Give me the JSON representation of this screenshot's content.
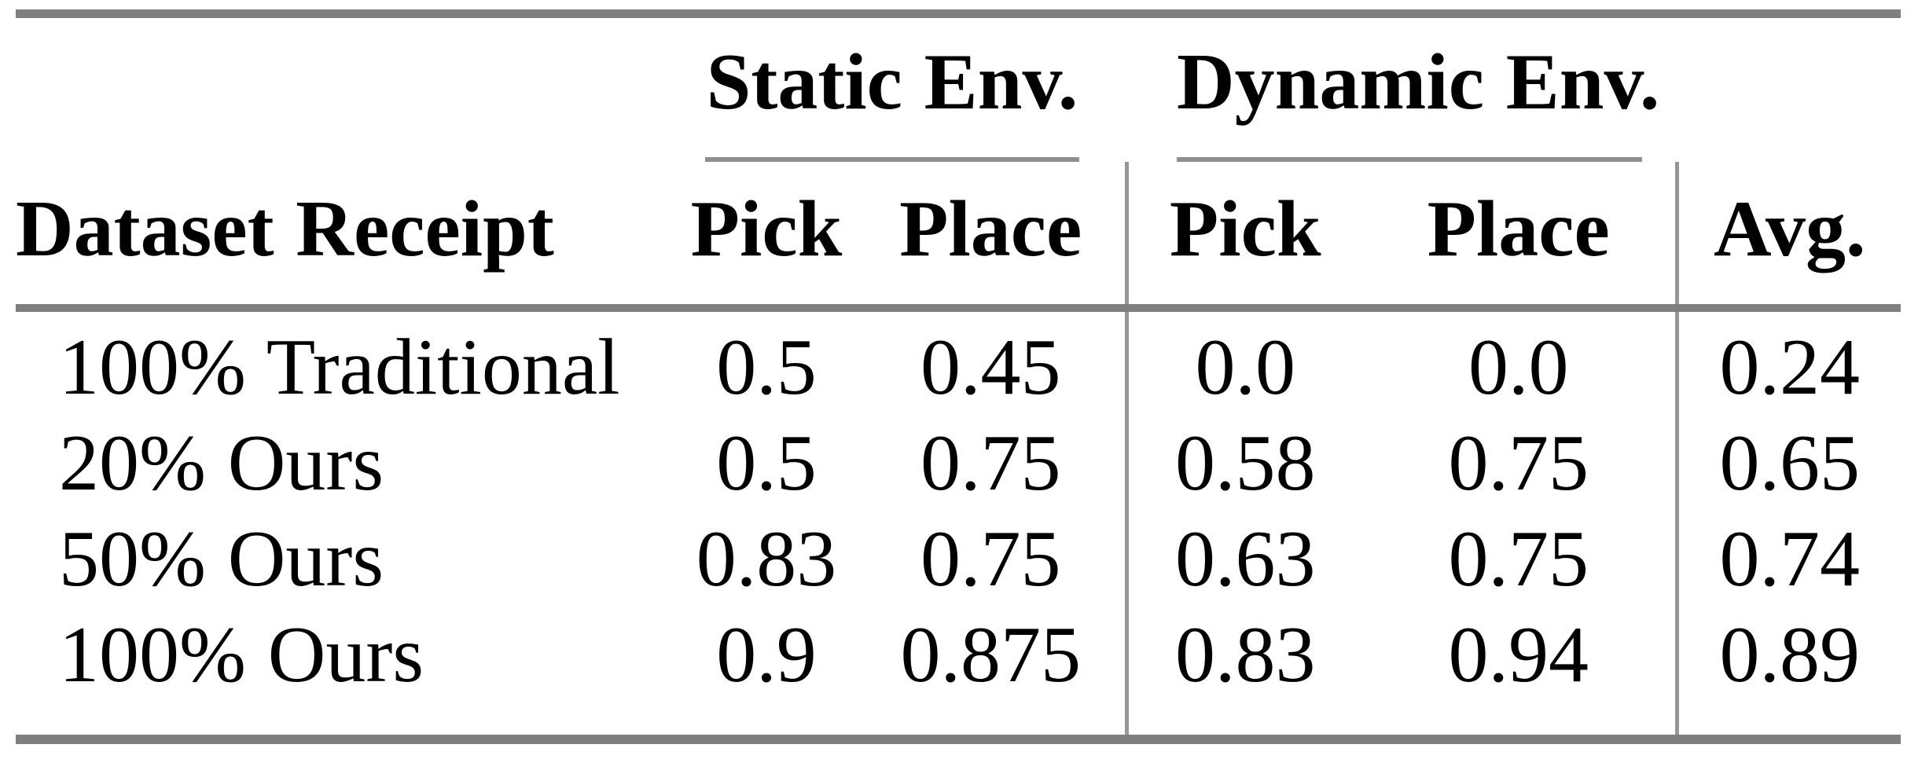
{
  "colors": {
    "background": "#ffffff",
    "text": "#000000",
    "rule_heavy": "#7f7f7f",
    "rule_light": "#8f8f8f",
    "vertical_separator": "#969696"
  },
  "table": {
    "groups": [
      {
        "label": "Static Env."
      },
      {
        "label": "Dynamic Env."
      }
    ],
    "columns": [
      {
        "label": "Dataset Receipt"
      },
      {
        "label": "Pick"
      },
      {
        "label": "Place"
      },
      {
        "label": "Pick"
      },
      {
        "label": "Place"
      },
      {
        "label": "Avg."
      }
    ],
    "rows": [
      {
        "label": "100% Traditional",
        "values": [
          "0.5",
          "0.45",
          "0.0",
          "0.0",
          "0.24"
        ]
      },
      {
        "label": "20% Ours",
        "values": [
          "0.5",
          "0.75",
          "0.58",
          "0.75",
          "0.65"
        ]
      },
      {
        "label": "50% Ours",
        "values": [
          "0.83",
          "0.75",
          "0.63",
          "0.75",
          "0.74"
        ]
      },
      {
        "label": "100% Ours",
        "values": [
          "0.9",
          "0.875",
          "0.83",
          "0.94",
          "0.89"
        ]
      }
    ]
  },
  "chart_data": {
    "type": "table",
    "column_groups": [
      {
        "label": "Static Env.",
        "spans": [
          "Pick",
          "Place"
        ]
      },
      {
        "label": "Dynamic Env.",
        "spans": [
          "Pick",
          "Place"
        ]
      }
    ],
    "columns": [
      "Dataset Receipt",
      "Pick (Static Env.)",
      "Place (Static Env.)",
      "Pick (Dynamic Env.)",
      "Place (Dynamic Env.)",
      "Avg."
    ],
    "rows": [
      [
        "100% Traditional",
        0.5,
        0.45,
        0.0,
        0.0,
        0.24
      ],
      [
        "20% Ours",
        0.5,
        0.75,
        0.58,
        0.75,
        0.65
      ],
      [
        "50% Ours",
        0.83,
        0.75,
        0.63,
        0.75,
        0.74
      ],
      [
        "100% Ours",
        0.9,
        0.875,
        0.83,
        0.94,
        0.89
      ]
    ]
  }
}
